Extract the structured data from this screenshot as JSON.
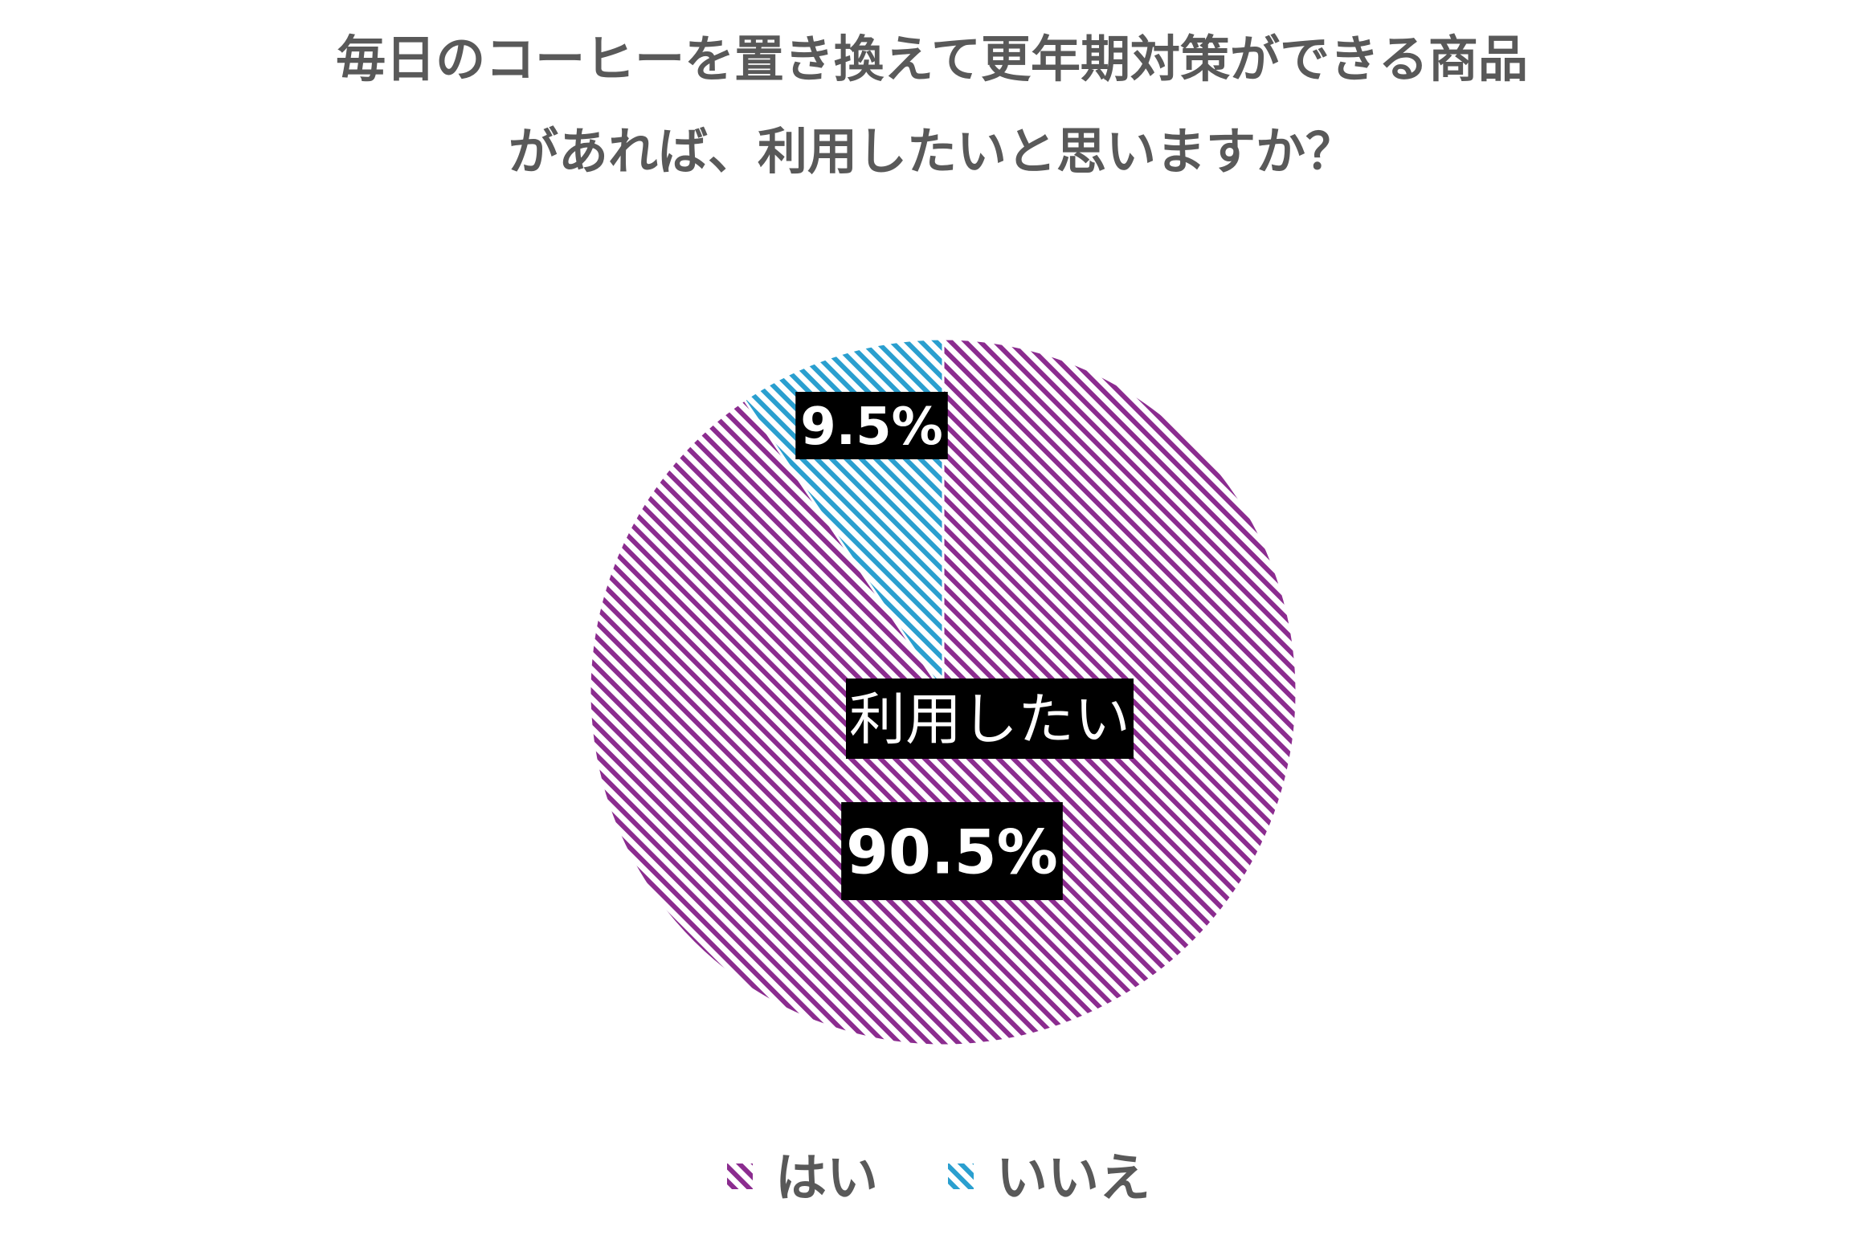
{
  "chart_data": {
    "type": "pie",
    "title_lines": [
      "毎日のコーヒーを置き換えて更年期対策ができる商品",
      "があれば、利用したいと思いますか？"
    ],
    "slices": [
      {
        "name": "はい",
        "value": 90.5,
        "label": "90.5%",
        "color": "#8b2c8f"
      },
      {
        "name": "いいえ",
        "value": 9.5,
        "label": "9.5%",
        "color": "#2a9fcf"
      }
    ],
    "annotation": "利用したい",
    "legend": {
      "position": "bottom"
    },
    "start_angle": "12 o'clock",
    "direction": "clockwise",
    "fill_pattern": "diagonal-hatch",
    "title_color": "#595959",
    "label_bg_color": "#000000",
    "label_text_color": "#ffffff"
  }
}
